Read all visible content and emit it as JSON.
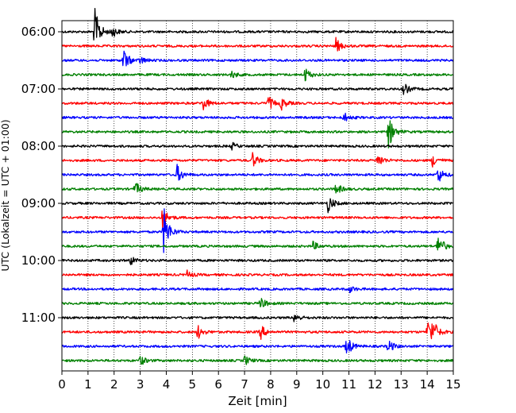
{
  "chart_data": {
    "type": "line",
    "subtype": "helicorder",
    "title": "",
    "xlabel": "Zeit  [min]",
    "ylabel": "UTC (Lokalzeit = UTC + 01:00)",
    "xlim": [
      0,
      15
    ],
    "x_ticks": [
      "0",
      "1",
      "2",
      "3",
      "4",
      "5",
      "6",
      "7",
      "8",
      "9",
      "10",
      "11",
      "12",
      "13",
      "14",
      "15"
    ],
    "y_ticks": [
      "06:00",
      "07:00",
      "08:00",
      "09:00",
      "10:00",
      "11:00"
    ],
    "vertical_grid": "dotted",
    "interval_minutes": 15,
    "trace_colors": [
      "#000000",
      "#ff0000",
      "#0000ff",
      "#008000"
    ],
    "traces": [
      {
        "start": "06:00",
        "events": [
          {
            "t": 1.25,
            "amp": 1.0
          },
          {
            "t": 1.9,
            "amp": 0.25
          }
        ]
      },
      {
        "start": "06:15",
        "events": [
          {
            "t": 10.5,
            "amp": 0.3
          }
        ]
      },
      {
        "start": "06:30",
        "events": [
          {
            "t": 2.35,
            "amp": 0.5
          },
          {
            "t": 3.0,
            "amp": 0.15
          }
        ]
      },
      {
        "start": "06:45",
        "events": [
          {
            "t": 9.3,
            "amp": 0.3
          },
          {
            "t": 6.5,
            "amp": 0.15
          }
        ]
      },
      {
        "start": "07:00",
        "events": [
          {
            "t": 13.1,
            "amp": 0.25
          }
        ]
      },
      {
        "start": "07:15",
        "events": [
          {
            "t": 5.4,
            "amp": 0.3
          },
          {
            "t": 7.9,
            "amp": 0.3
          },
          {
            "t": 8.4,
            "amp": 0.25
          }
        ]
      },
      {
        "start": "07:30",
        "events": [
          {
            "t": 10.8,
            "amp": 0.2
          }
        ]
      },
      {
        "start": "07:45",
        "events": [
          {
            "t": 12.5,
            "amp": 0.7
          }
        ]
      },
      {
        "start": "08:00",
        "events": [
          {
            "t": 6.5,
            "amp": 0.15
          }
        ]
      },
      {
        "start": "08:15",
        "events": [
          {
            "t": 7.3,
            "amp": 0.3
          },
          {
            "t": 12.1,
            "amp": 0.3
          },
          {
            "t": 14.2,
            "amp": 0.25
          }
        ]
      },
      {
        "start": "08:30",
        "events": [
          {
            "t": 4.4,
            "amp": 0.4
          },
          {
            "t": 14.4,
            "amp": 0.35
          }
        ]
      },
      {
        "start": "08:45",
        "events": [
          {
            "t": 2.8,
            "amp": 0.3
          },
          {
            "t": 10.5,
            "amp": 0.25
          }
        ]
      },
      {
        "start": "09:00",
        "events": [
          {
            "t": 10.2,
            "amp": 0.35
          }
        ]
      },
      {
        "start": "09:15",
        "events": [
          {
            "t": 3.85,
            "amp": 0.45
          }
        ]
      },
      {
        "start": "09:30",
        "events": [
          {
            "t": 3.9,
            "amp": 1.0
          }
        ]
      },
      {
        "start": "09:45",
        "events": [
          {
            "t": 14.4,
            "amp": 0.55
          },
          {
            "t": 9.6,
            "amp": 0.2
          }
        ]
      },
      {
        "start": "10:00",
        "events": [
          {
            "t": 2.6,
            "amp": 0.2
          }
        ]
      },
      {
        "start": "10:15",
        "events": [
          {
            "t": 4.8,
            "amp": 0.15
          }
        ]
      },
      {
        "start": "10:30",
        "events": [
          {
            "t": 11.0,
            "amp": 0.15
          }
        ]
      },
      {
        "start": "10:45",
        "events": [
          {
            "t": 7.6,
            "amp": 0.25
          }
        ]
      },
      {
        "start": "11:00",
        "events": [
          {
            "t": 8.9,
            "amp": 0.2
          }
        ]
      },
      {
        "start": "11:15",
        "events": [
          {
            "t": 5.2,
            "amp": 0.3
          },
          {
            "t": 7.6,
            "amp": 0.3
          },
          {
            "t": 14.0,
            "amp": 0.5
          },
          {
            "t": 14.2,
            "amp": 0.45
          }
        ]
      },
      {
        "start": "11:30",
        "events": [
          {
            "t": 10.9,
            "amp": 0.45
          },
          {
            "t": 12.5,
            "amp": 0.3
          }
        ]
      },
      {
        "start": "11:45",
        "events": [
          {
            "t": 3.0,
            "amp": 0.2
          },
          {
            "t": 7.0,
            "amp": 0.2
          }
        ]
      }
    ]
  }
}
